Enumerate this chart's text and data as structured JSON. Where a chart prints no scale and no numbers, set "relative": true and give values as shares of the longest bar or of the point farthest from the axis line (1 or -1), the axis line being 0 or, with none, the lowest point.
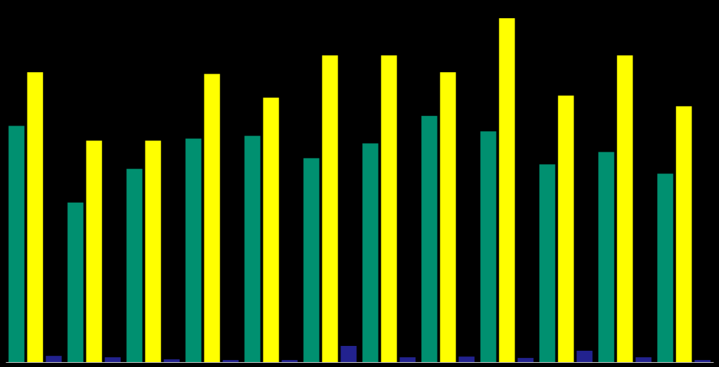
{
  "chart_data": {
    "type": "bar",
    "relative": true,
    "categories": [
      null,
      null,
      null,
      null,
      null,
      null,
      null,
      null,
      null,
      null,
      null,
      null
    ],
    "series": [
      {
        "color": "#009070",
        "values": [
          0.687,
          0.464,
          0.562,
          0.65,
          0.658,
          0.593,
          0.636,
          0.716,
          0.671,
          0.575,
          0.611,
          0.548
        ]
      },
      {
        "color": "#ffff00",
        "values": [
          0.843,
          0.644,
          0.644,
          0.838,
          0.769,
          0.892,
          0.892,
          0.843,
          1.0,
          0.775,
          0.892,
          0.744
        ]
      },
      {
        "color": "#22228f",
        "values": [
          0.018,
          0.014,
          0.008,
          0.006,
          0.006,
          0.047,
          0.014,
          0.016,
          0.012,
          0.033,
          0.014,
          0.006
        ]
      }
    ]
  }
}
